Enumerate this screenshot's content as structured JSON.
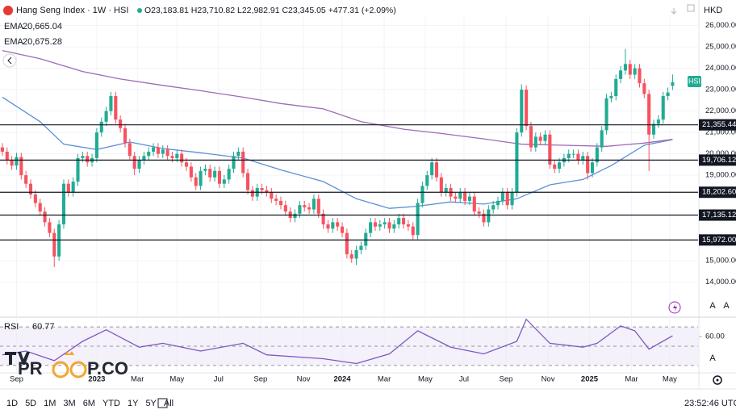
{
  "chart_data": {
    "type": "candlestick",
    "title": "Hang Seng Index · 1W · HSI",
    "ohlc_text": "O23,183.81 H23,710.82 L22,982.91 C23,345.05 +477.31 (+2.09%)",
    "currency": "HKD",
    "symbol_tag": "HSI",
    "up_color": "#22ab94",
    "down_color": "#f7525f",
    "grid": true,
    "xlim": [
      -0.5,
      147.4
    ],
    "ylim": [
      12400,
      26400
    ],
    "yticks": [
      {
        "value": 14000,
        "label": "14,000.00"
      },
      {
        "value": 15000,
        "label": "15,000.00"
      },
      {
        "value": 19000,
        "label": "19,000.00"
      },
      {
        "value": 20000,
        "label": "20,000.00"
      },
      {
        "value": 21000,
        "label": "21,000.00"
      },
      {
        "value": 22000,
        "label": "22,000.00"
      },
      {
        "value": 23000,
        "label": "23,000.00"
      },
      {
        "value": 24000,
        "label": "24,000.00"
      },
      {
        "value": 25000,
        "label": "25,000.00"
      },
      {
        "value": 26000,
        "label": "26,000.00"
      }
    ],
    "xticks": [
      {
        "value": 3,
        "label": "Sep"
      },
      {
        "value": 20,
        "label": "2023"
      },
      {
        "value": 28.6,
        "label": "Mar"
      },
      {
        "value": 37,
        "label": "May"
      },
      {
        "value": 45.8,
        "label": "Jul"
      },
      {
        "value": 54.7,
        "label": "Sep"
      },
      {
        "value": 63.8,
        "label": "Nov"
      },
      {
        "value": 72,
        "label": "2024"
      },
      {
        "value": 80.9,
        "label": "Mar"
      },
      {
        "value": 89.6,
        "label": "May"
      },
      {
        "value": 97.8,
        "label": "Jul"
      },
      {
        "value": 106.7,
        "label": "Sep"
      },
      {
        "value": 115.6,
        "label": "Nov"
      },
      {
        "value": 124.4,
        "label": "2025"
      },
      {
        "value": 133.3,
        "label": "Mar"
      },
      {
        "value": 141.4,
        "label": "May"
      }
    ],
    "hlines": [
      {
        "value": 21355.44,
        "label": "21,355.44"
      },
      {
        "value": 19706.12,
        "label": "19,706.12"
      },
      {
        "value": 18202.6,
        "label": "18,202.60"
      },
      {
        "value": 17135.12,
        "label": "17,135.12"
      },
      {
        "value": 15972,
        "label": "15,972.00"
      }
    ],
    "candles": [
      [
        20300,
        20500,
        19900,
        20100
      ],
      [
        20100,
        20300,
        19500,
        19700
      ],
      [
        19700,
        19900,
        19250,
        19450
      ],
      [
        19450,
        20050,
        19250,
        19850
      ],
      [
        19850,
        20050,
        18800,
        19000
      ],
      [
        19000,
        19200,
        18400,
        18600
      ],
      [
        18600,
        18800,
        17900,
        18100
      ],
      [
        18100,
        18300,
        17500,
        17700
      ],
      [
        17700,
        17900,
        17100,
        17300
      ],
      [
        17300,
        17500,
        16600,
        16800
      ],
      [
        16800,
        17000,
        16100,
        16300
      ],
      [
        16300,
        16500,
        14700,
        15200
      ],
      [
        15200,
        16900,
        15000,
        16700
      ],
      [
        16700,
        18800,
        16500,
        18600
      ],
      [
        18600,
        18800,
        18000,
        18200
      ],
      [
        18200,
        18900,
        18000,
        18700
      ],
      [
        18700,
        20000,
        18500,
        19800
      ],
      [
        19800,
        20100,
        19600,
        19900
      ],
      [
        19900,
        20100,
        19400,
        19600
      ],
      [
        19600,
        20000,
        19400,
        19800
      ],
      [
        19800,
        21200,
        19600,
        21000
      ],
      [
        21000,
        21700,
        20800,
        21500
      ],
      [
        21500,
        22200,
        21300,
        22000
      ],
      [
        22000,
        22900,
        21800,
        22700
      ],
      [
        22700,
        22900,
        21400,
        21600
      ],
      [
        21600,
        21800,
        21000,
        21200
      ],
      [
        21200,
        21400,
        20300,
        20500
      ],
      [
        20500,
        20700,
        19700,
        19900
      ],
      [
        19900,
        20100,
        19000,
        19300
      ],
      [
        19300,
        19900,
        19100,
        19700
      ],
      [
        19700,
        20100,
        19500,
        19900
      ],
      [
        19900,
        20300,
        19700,
        20100
      ],
      [
        20100,
        20500,
        19900,
        20300
      ],
      [
        20300,
        20500,
        19800,
        20000
      ],
      [
        20000,
        20400,
        19800,
        20200
      ],
      [
        20200,
        20400,
        19700,
        19900
      ],
      [
        19900,
        20100,
        19600,
        19800
      ],
      [
        19800,
        20200,
        19600,
        20000
      ],
      [
        20000,
        20200,
        19400,
        19600
      ],
      [
        19600,
        19800,
        19200,
        19400
      ],
      [
        19400,
        19600,
        18700,
        18900
      ],
      [
        18900,
        19100,
        18300,
        18500
      ],
      [
        18500,
        19400,
        18300,
        19200
      ],
      [
        19200,
        19500,
        19000,
        19300
      ],
      [
        19300,
        19500,
        18700,
        18900
      ],
      [
        18900,
        19400,
        18700,
        19200
      ],
      [
        19200,
        19400,
        18400,
        18600
      ],
      [
        18600,
        19000,
        18400,
        18800
      ],
      [
        18800,
        19500,
        18600,
        19300
      ],
      [
        19300,
        20100,
        19100,
        19900
      ],
      [
        19900,
        20300,
        19700,
        20100
      ],
      [
        20100,
        20300,
        18900,
        19100
      ],
      [
        19100,
        19300,
        18100,
        18300
      ],
      [
        18300,
        18500,
        17800,
        18000
      ],
      [
        18000,
        18600,
        17800,
        18400
      ],
      [
        18400,
        18600,
        18100,
        18300
      ],
      [
        18300,
        18500,
        18000,
        18200
      ],
      [
        18200,
        18400,
        17700,
        17900
      ],
      [
        17900,
        18100,
        17600,
        17800
      ],
      [
        17800,
        18000,
        17400,
        17600
      ],
      [
        17600,
        17800,
        17100,
        17300
      ],
      [
        17300,
        17500,
        16800,
        17000
      ],
      [
        17000,
        17400,
        16800,
        17200
      ],
      [
        17200,
        17800,
        17000,
        17600
      ],
      [
        17600,
        17800,
        17300,
        17500
      ],
      [
        17500,
        17700,
        17200,
        17400
      ],
      [
        17400,
        18100,
        17200,
        17900
      ],
      [
        17900,
        18100,
        17000,
        17200
      ],
      [
        17200,
        17400,
        16500,
        16700
      ],
      [
        16700,
        16900,
        16300,
        16500
      ],
      [
        16500,
        17000,
        16300,
        16800
      ],
      [
        16800,
        17000,
        16400,
        16600
      ],
      [
        16600,
        16800,
        16100,
        16300
      ],
      [
        16300,
        16500,
        15100,
        15300
      ],
      [
        15300,
        15500,
        14900,
        15100
      ],
      [
        15100,
        15700,
        14800,
        15500
      ],
      [
        15500,
        15900,
        15300,
        15700
      ],
      [
        15700,
        16500,
        15500,
        16300
      ],
      [
        16300,
        17000,
        16100,
        16800
      ],
      [
        16800,
        17000,
        16400,
        16600
      ],
      [
        16600,
        16900,
        16400,
        16700
      ],
      [
        16700,
        17000,
        16500,
        16800
      ],
      [
        16800,
        17000,
        16300,
        16500
      ],
      [
        16500,
        16900,
        16300,
        16700
      ],
      [
        16700,
        17200,
        16500,
        17000
      ],
      [
        17000,
        17200,
        16500,
        16700
      ],
      [
        16700,
        16900,
        16400,
        16600
      ],
      [
        16600,
        16800,
        16000,
        16200
      ],
      [
        16200,
        17900,
        16000,
        17700
      ],
      [
        17700,
        18700,
        17500,
        18500
      ],
      [
        18500,
        19200,
        18300,
        19000
      ],
      [
        19000,
        19800,
        18800,
        19600
      ],
      [
        19600,
        19800,
        18700,
        18900
      ],
      [
        18900,
        19100,
        18000,
        18200
      ],
      [
        18200,
        18600,
        18000,
        18400
      ],
      [
        18400,
        18600,
        17800,
        18000
      ],
      [
        18000,
        18200,
        17700,
        17900
      ],
      [
        17900,
        18400,
        17700,
        18200
      ],
      [
        18200,
        18400,
        17600,
        17800
      ],
      [
        17800,
        18200,
        17600,
        18000
      ],
      [
        18000,
        18200,
        17100,
        17300
      ],
      [
        17300,
        17500,
        17000,
        17200
      ],
      [
        17200,
        17400,
        16600,
        16800
      ],
      [
        16800,
        17600,
        16600,
        17400
      ],
      [
        17400,
        17800,
        17200,
        17600
      ],
      [
        17600,
        18000,
        17400,
        17800
      ],
      [
        17800,
        18400,
        17600,
        18200
      ],
      [
        18200,
        18400,
        17400,
        17600
      ],
      [
        17600,
        18400,
        17400,
        18200
      ],
      [
        18200,
        21200,
        18000,
        21000
      ],
      [
        21000,
        23250,
        20800,
        23000
      ],
      [
        23000,
        23200,
        21100,
        21300
      ],
      [
        21300,
        21500,
        20100,
        20300
      ],
      [
        20300,
        21000,
        20100,
        20800
      ],
      [
        20800,
        21000,
        20400,
        20600
      ],
      [
        20600,
        21100,
        20400,
        20900
      ],
      [
        20900,
        21100,
        19300,
        19500
      ],
      [
        19500,
        19700,
        19100,
        19300
      ],
      [
        19300,
        19800,
        19100,
        19600
      ],
      [
        19600,
        20000,
        19400,
        19800
      ],
      [
        19800,
        20200,
        19600,
        20000
      ],
      [
        20000,
        20200,
        19800,
        20000
      ],
      [
        20000,
        20200,
        19500,
        19700
      ],
      [
        19700,
        20100,
        19500,
        19900
      ],
      [
        19900,
        20100,
        18800,
        19100
      ],
      [
        19100,
        19800,
        18900,
        19600
      ],
      [
        19600,
        20500,
        19400,
        20300
      ],
      [
        20300,
        21300,
        20100,
        21100
      ],
      [
        21100,
        22800,
        20900,
        22600
      ],
      [
        22600,
        22900,
        22400,
        22700
      ],
      [
        22700,
        23700,
        22500,
        23500
      ],
      [
        23500,
        24100,
        23300,
        23900
      ],
      [
        23900,
        24900,
        23700,
        24200
      ],
      [
        24200,
        24400,
        23500,
        23700
      ],
      [
        23700,
        24200,
        23500,
        24000
      ],
      [
        24000,
        24200,
        23100,
        23300
      ],
      [
        23300,
        23500,
        22600,
        22800
      ],
      [
        22800,
        23000,
        19200,
        20900
      ],
      [
        20900,
        21600,
        20700,
        21400
      ],
      [
        21400,
        21800,
        21200,
        21600
      ],
      [
        21600,
        22900,
        21400,
        22700
      ],
      [
        22700,
        23100,
        22500,
        22867.74
      ],
      [
        23183.81,
        23710.82,
        22982.91,
        23345.05
      ]
    ],
    "ema": [
      {
        "name": "EMA",
        "value_label": "20,665.04",
        "color": "#5b8fd9",
        "x": [
          0,
          8,
          13,
          20,
          27,
          34,
          42,
          51,
          59,
          68,
          75,
          82,
          88,
          95,
          102,
          109,
          116,
          123,
          129,
          136,
          142
        ],
        "values": [
          22650,
          21500,
          20450,
          20200,
          20550,
          20250,
          20050,
          19800,
          19250,
          18700,
          17900,
          17450,
          17550,
          17750,
          17650,
          17900,
          18550,
          18800,
          19450,
          20400,
          20665.04
        ]
      },
      {
        "name": "EMA",
        "value_label": "20,675.28",
        "color": "#9c6bb8",
        "x": [
          0,
          8,
          17,
          25,
          34,
          42,
          51,
          59,
          68,
          76,
          85,
          93,
          102,
          110,
          119,
          128,
          136,
          142
        ],
        "values": [
          24830,
          24450,
          23850,
          23500,
          23200,
          22950,
          22650,
          22350,
          22100,
          21500,
          21150,
          20950,
          20700,
          20450,
          20400,
          20350,
          20500,
          20675.28
        ]
      }
    ],
    "rsi": {
      "name": "RSI",
      "value_label": "60.77",
      "color": "#7e57c2",
      "ylim": [
        24,
        78.5
      ],
      "yticks": [
        {
          "value": 60,
          "label": "60.00"
        }
      ],
      "levels": [
        70,
        50,
        30
      ],
      "x": [
        0,
        5,
        11,
        17,
        22,
        29,
        34,
        42,
        51,
        56,
        68,
        75,
        82,
        88,
        95,
        102,
        109,
        111,
        116,
        123,
        126,
        131,
        134,
        137,
        142
      ],
      "values": [
        41,
        45,
        35,
        55,
        67,
        49,
        53,
        45,
        53,
        41,
        37,
        32,
        42,
        66,
        49,
        42,
        55,
        78,
        53,
        49,
        53,
        71,
        66,
        47,
        60.77
      ]
    },
    "watermark": [
      "PR",
      "P.CO"
    ],
    "log_toggle": "A",
    "ranges": [
      "1D",
      "5D",
      "1M",
      "3M",
      "6M",
      "YTD",
      "1Y",
      "5Y",
      "All"
    ],
    "clock": "23:52:46 UTC"
  }
}
